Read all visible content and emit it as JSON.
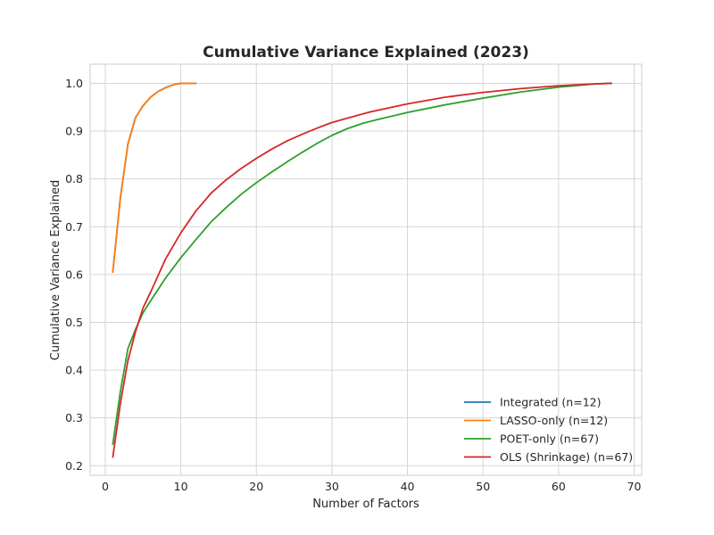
{
  "chart_data": {
    "type": "line",
    "title": "Cumulative Variance Explained (2023)",
    "xlabel": "Number of Factors",
    "ylabel": "Cumulative Variance Explained",
    "xlim": [
      -2,
      71
    ],
    "ylim": [
      0.18,
      1.04
    ],
    "xticks": [
      0,
      10,
      20,
      30,
      40,
      50,
      60,
      70
    ],
    "yticks": [
      0.2,
      0.3,
      0.4,
      0.5,
      0.6,
      0.7,
      0.8,
      0.9,
      1.0
    ],
    "grid": true,
    "legend_position": "lower-right",
    "series": [
      {
        "name": "Integrated (n=12)",
        "color": "#1f77b4",
        "x": [
          1,
          2,
          3,
          4,
          5,
          6,
          7,
          8,
          9,
          10,
          11,
          12
        ],
        "y": [
          0.605,
          0.76,
          0.873,
          0.928,
          0.953,
          0.971,
          0.983,
          0.991,
          0.997,
          1.0,
          1.0,
          1.0
        ]
      },
      {
        "name": "LASSO-only (n=12)",
        "color": "#ff7f0e",
        "x": [
          1,
          2,
          3,
          4,
          5,
          6,
          7,
          8,
          9,
          10,
          11,
          12
        ],
        "y": [
          0.605,
          0.76,
          0.873,
          0.928,
          0.953,
          0.971,
          0.983,
          0.991,
          0.997,
          1.0,
          1.0,
          1.0
        ]
      },
      {
        "name": "POET-only (n=67)",
        "color": "#2ca02c",
        "x": [
          1,
          2,
          3,
          4,
          5,
          6,
          8,
          10,
          12,
          14,
          16,
          18,
          20,
          22,
          24,
          26,
          28,
          30,
          32,
          34,
          36,
          40,
          45,
          50,
          55,
          60,
          65,
          67
        ],
        "y": [
          0.245,
          0.355,
          0.445,
          0.485,
          0.52,
          0.545,
          0.593,
          0.635,
          0.673,
          0.71,
          0.74,
          0.768,
          0.792,
          0.814,
          0.835,
          0.855,
          0.874,
          0.891,
          0.905,
          0.916,
          0.924,
          0.939,
          0.955,
          0.969,
          0.982,
          0.992,
          0.999,
          1.0
        ]
      },
      {
        "name": "OLS (Shrinkage) (n=67)",
        "color": "#d62728",
        "x": [
          1,
          2,
          3,
          4,
          5,
          6,
          8,
          10,
          12,
          14,
          16,
          18,
          20,
          22,
          24,
          26,
          28,
          30,
          35,
          40,
          45,
          50,
          55,
          60,
          65,
          67
        ],
        "y": [
          0.218,
          0.33,
          0.42,
          0.48,
          0.53,
          0.563,
          0.633,
          0.687,
          0.733,
          0.77,
          0.798,
          0.822,
          0.843,
          0.862,
          0.879,
          0.893,
          0.906,
          0.918,
          0.94,
          0.957,
          0.971,
          0.981,
          0.989,
          0.995,
          0.999,
          1.0
        ]
      }
    ]
  }
}
